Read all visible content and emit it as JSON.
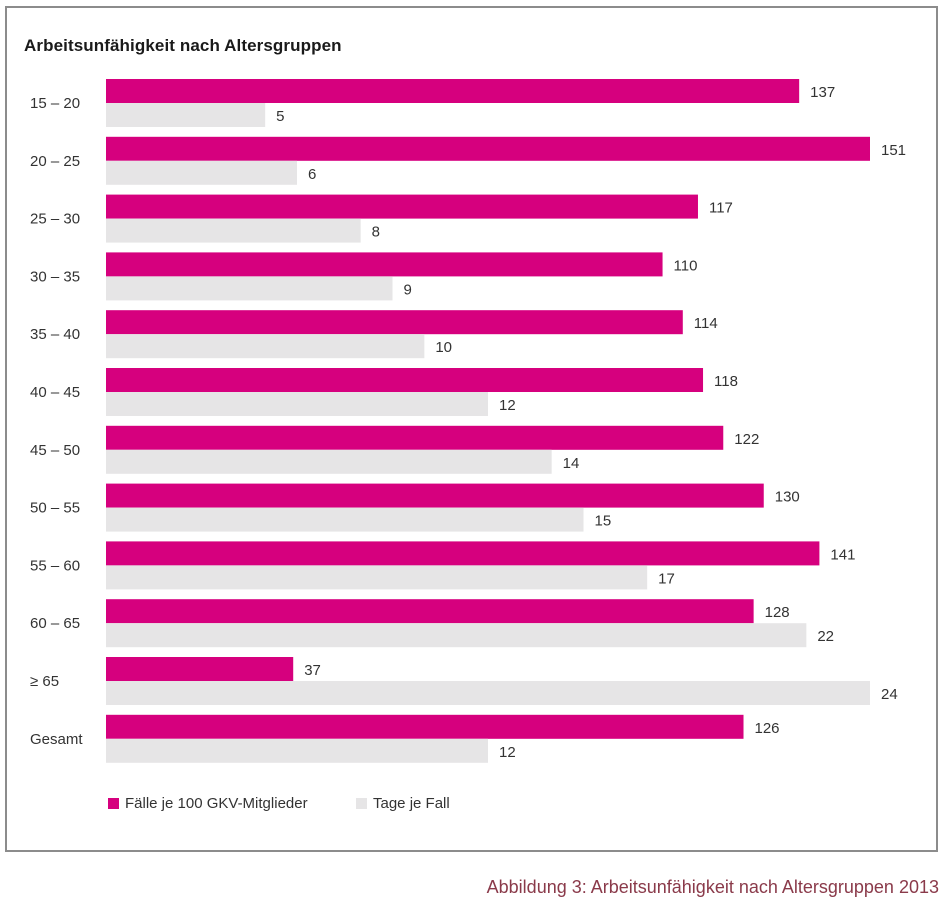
{
  "chart_data": {
    "type": "bar",
    "orientation": "horizontal",
    "title": "Arbeitsunfähigkeit nach Altersgruppen",
    "categories": [
      "15 – 20",
      "20 – 25",
      "25 – 30",
      "30 – 35",
      "35 – 40",
      "40 – 45",
      "45 – 50",
      "50 – 55",
      "55 – 60",
      "60 – 65",
      "≥ 65",
      "Gesamt"
    ],
    "series": [
      {
        "name": "Fälle je 100 GKV-Mitglieder",
        "color": "#d6007e",
        "values": [
          137,
          151,
          117,
          110,
          114,
          118,
          122,
          130,
          141,
          128,
          37,
          126
        ],
        "xlim": [
          0,
          151
        ]
      },
      {
        "name": "Tage je Fall",
        "color": "#e6e5e6",
        "values": [
          5,
          6,
          8,
          9,
          10,
          12,
          14,
          15,
          17,
          22,
          24,
          12
        ],
        "xlim": [
          0,
          24
        ]
      }
    ],
    "legend_position": "bottom-left",
    "grid": false
  },
  "caption": "Abbildung 3: Arbeitsunfähigkeit nach Altersgruppen 2013"
}
